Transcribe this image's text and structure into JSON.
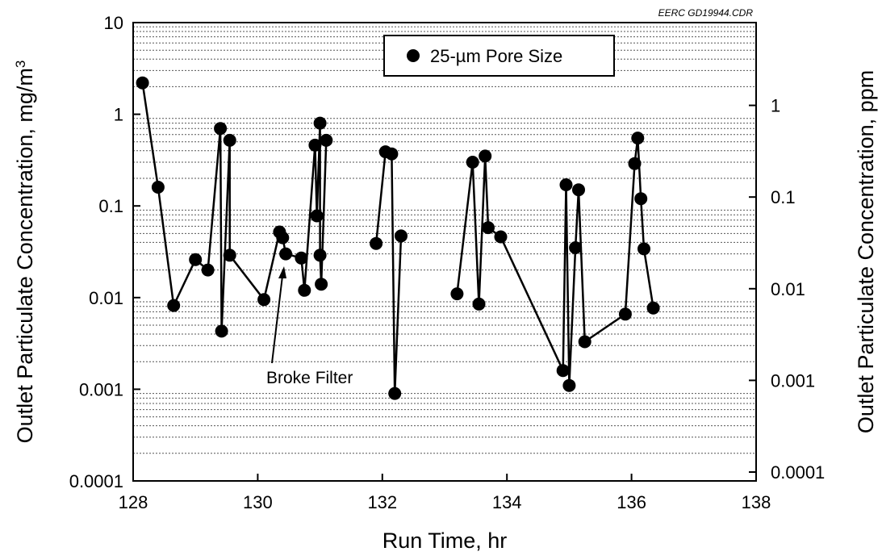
{
  "figure_code": "EERC GD19944.CDR",
  "chart_data": {
    "type": "line",
    "x": {
      "label": "Run Time, hr",
      "range": [
        128,
        138
      ],
      "ticks": [
        "128",
        "130",
        "132",
        "134",
        "136",
        "138"
      ],
      "tick_values": [
        128,
        130,
        132,
        134,
        136,
        138
      ]
    },
    "y_left": {
      "label": "Outlet Particulate Concentration, mg/m",
      "label_superscript": "3",
      "scale": "log",
      "range": [
        0.0001,
        10
      ],
      "ticks": [
        "0.0001",
        "0.001",
        "0.01",
        "0.1",
        "1",
        "10"
      ],
      "tick_values": [
        0.0001,
        0.001,
        0.01,
        0.1,
        1,
        10
      ]
    },
    "y_right": {
      "label": "Outlet Particulate Concentration, ppm",
      "scale": "log",
      "ticks": [
        "0.0001",
        "0.001",
        "0.01",
        "0.1",
        "1"
      ],
      "tick_values": [
        0.0001,
        0.001,
        0.01,
        0.1,
        1
      ],
      "position_in_left_units": [
        0.000125,
        0.00125,
        0.0125,
        0.125,
        1.25
      ]
    },
    "grid": "dotted horizontal minor gridlines",
    "legend": {
      "position": "top-center",
      "entries": [
        "25-µm Pore Size"
      ]
    },
    "annotations": [
      {
        "text": "Broke Filter",
        "x": 130.45,
        "y": 0.013
      }
    ],
    "series": [
      {
        "name": "25-µm Pore Size",
        "marker": "circle",
        "segments": [
          {
            "points": [
              [
                128.15,
                2.2
              ],
              [
                128.4,
                0.16
              ],
              [
                128.65,
                0.0082
              ],
              [
                129.0,
                0.026
              ],
              [
                129.2,
                0.02
              ],
              [
                129.4,
                0.7
              ],
              [
                129.42,
                0.0043
              ],
              [
                129.55,
                0.52
              ],
              [
                129.55,
                0.029
              ],
              [
                130.1,
                0.0095
              ],
              [
                130.35,
                0.052
              ],
              [
                130.4,
                0.045
              ],
              [
                130.45,
                0.03
              ],
              [
                130.7,
                0.027
              ],
              [
                130.75,
                0.012
              ],
              [
                130.92,
                0.46
              ],
              [
                130.95,
                0.078
              ],
              [
                131.0,
                0.8
              ],
              [
                131.0,
                0.029
              ],
              [
                131.02,
                0.014
              ],
              [
                131.1,
                0.52
              ]
            ]
          },
          {
            "points": [
              [
                131.9,
                0.039
              ],
              [
                132.05,
                0.39
              ],
              [
                132.15,
                0.37
              ],
              [
                132.2,
                0.0009
              ],
              [
                132.3,
                0.047
              ]
            ]
          },
          {
            "points": [
              [
                133.2,
                0.011
              ],
              [
                133.45,
                0.3
              ],
              [
                133.55,
                0.0085
              ],
              [
                133.65,
                0.35
              ],
              [
                133.7,
                0.058
              ],
              [
                133.9,
                0.046
              ],
              [
                134.9,
                0.0016
              ],
              [
                134.95,
                0.17
              ],
              [
                135.0,
                0.0011
              ],
              [
                135.1,
                0.035
              ],
              [
                135.15,
                0.15
              ],
              [
                135.25,
                0.0033
              ],
              [
                135.9,
                0.0066
              ],
              [
                136.05,
                0.29
              ],
              [
                136.1,
                0.55
              ],
              [
                136.15,
                0.12
              ],
              [
                136.2,
                0.034
              ],
              [
                136.35,
                0.0077
              ]
            ]
          }
        ]
      }
    ]
  }
}
